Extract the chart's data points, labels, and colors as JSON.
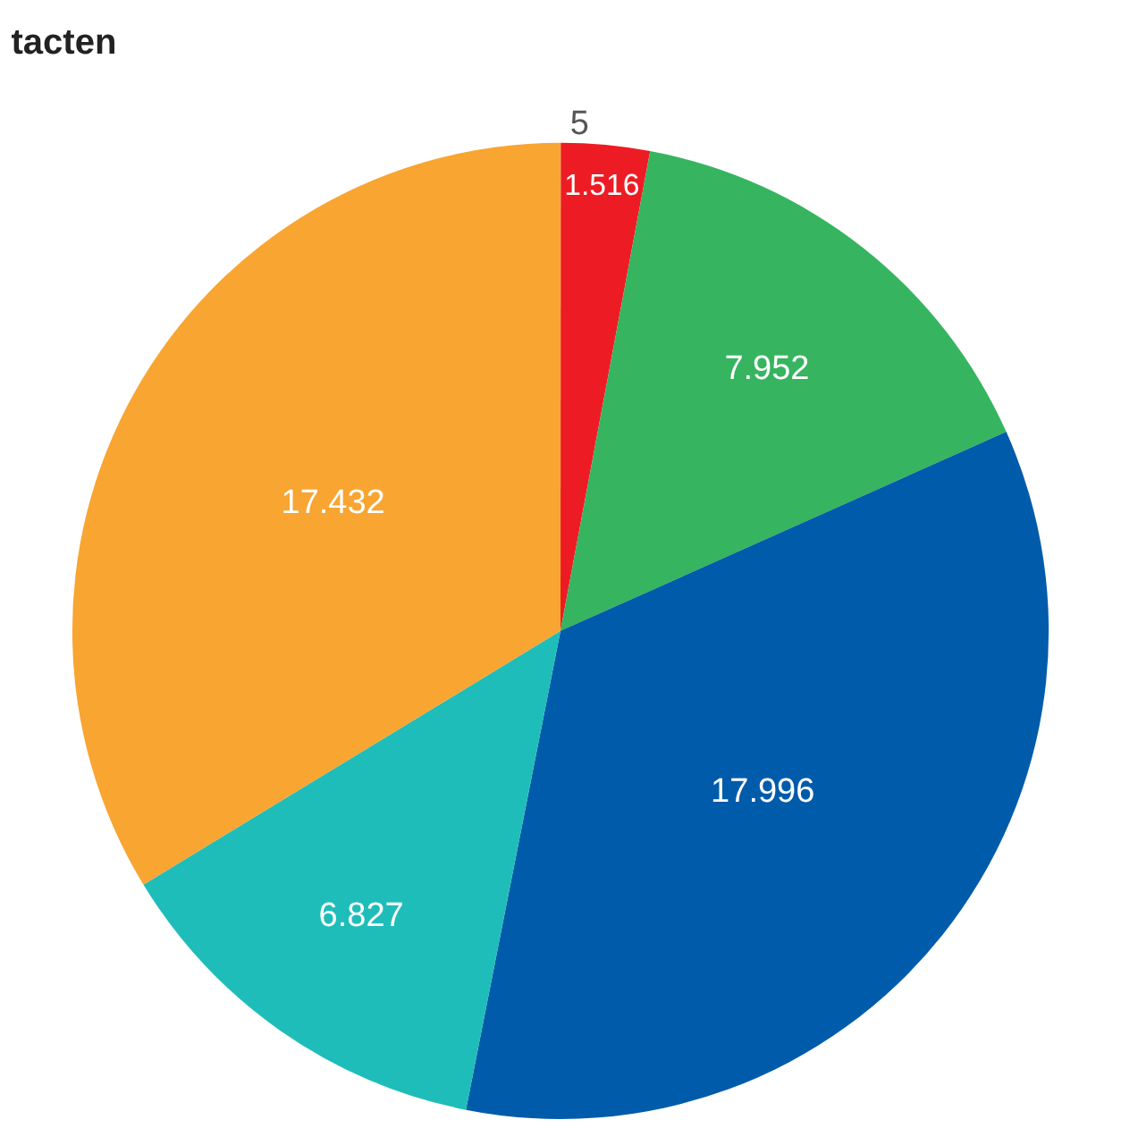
{
  "chart_data": {
    "type": "pie",
    "title": "tacten",
    "categories": [
      null,
      null,
      null,
      null,
      null,
      null
    ],
    "values": [
      5,
      1516,
      7952,
      17996,
      6827,
      17432
    ],
    "value_labels": [
      "5",
      "1.516",
      "7.952",
      "17.996",
      "6.827",
      "17.432"
    ],
    "colors": [
      "#a9b4c2",
      "#ed1c24",
      "#36b45f",
      "#005baa",
      "#1fbdb9",
      "#f8a532"
    ],
    "legend": false
  }
}
